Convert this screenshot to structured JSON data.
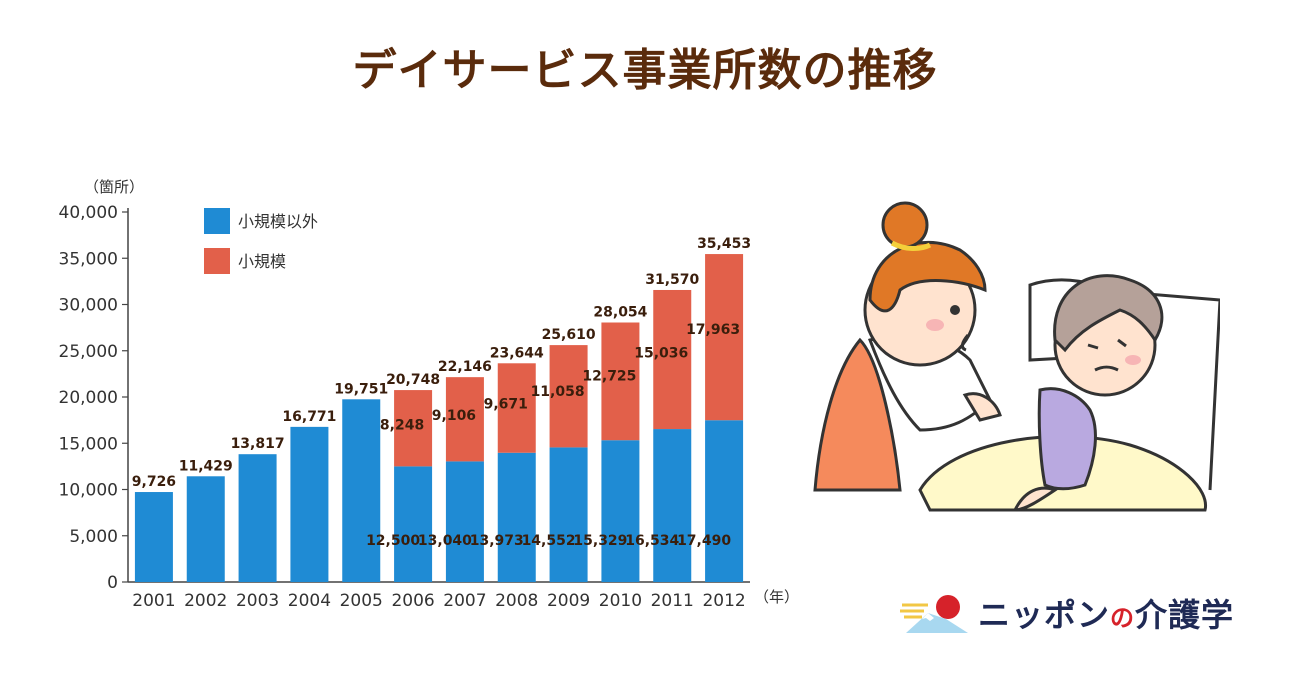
{
  "title": "デイサービス事業所数の推移",
  "brand": {
    "name_a": "ニッポン",
    "name_no": "の",
    "name_b": "介護学"
  },
  "chart_data": {
    "type": "bar",
    "stacked": true,
    "title": "デイサービス事業所数の推移",
    "y_unit_label": "（箇所）",
    "x_unit_label": "（年）",
    "ylim": [
      0,
      40000
    ],
    "y_ticks": [
      "0",
      "5,000",
      "10,000",
      "15,000",
      "20,000",
      "25,000",
      "30,000",
      "35,000",
      "40,000"
    ],
    "categories": [
      "2001",
      "2002",
      "2003",
      "2004",
      "2005",
      "2006",
      "2007",
      "2008",
      "2009",
      "2010",
      "2011",
      "2012"
    ],
    "series": [
      {
        "name": "小規模以外",
        "color": "#1f8bd4",
        "values": [
          9726,
          11429,
          13817,
          16771,
          19751,
          12500,
          13040,
          13973,
          14552,
          15329,
          16534,
          17490
        ],
        "labels": [
          null,
          null,
          null,
          null,
          null,
          "12,500",
          "13,040",
          "13,973",
          "14,552",
          "15,329",
          "16,534",
          "17,490"
        ]
      },
      {
        "name": "小規模",
        "color": "#e2604a",
        "values": [
          0,
          0,
          0,
          0,
          0,
          8248,
          9106,
          9671,
          11058,
          12725,
          15036,
          17963
        ],
        "labels": [
          null,
          null,
          null,
          null,
          null,
          "8,248",
          "9,106",
          "9,671",
          "11,058",
          "12,725",
          "15,036",
          "17,963"
        ]
      }
    ],
    "totals": [
      9726,
      11429,
      13817,
      16771,
      19751,
      20748,
      22146,
      23644,
      25610,
      28054,
      31570,
      35453
    ],
    "total_labels": [
      "9,726",
      "11,429",
      "13,817",
      "16,771",
      "19,751",
      "20,748",
      "22,146",
      "23,644",
      "25,610",
      "28,054",
      "31,570",
      "35,453"
    ],
    "legend_position": "top-left",
    "grid": false
  }
}
